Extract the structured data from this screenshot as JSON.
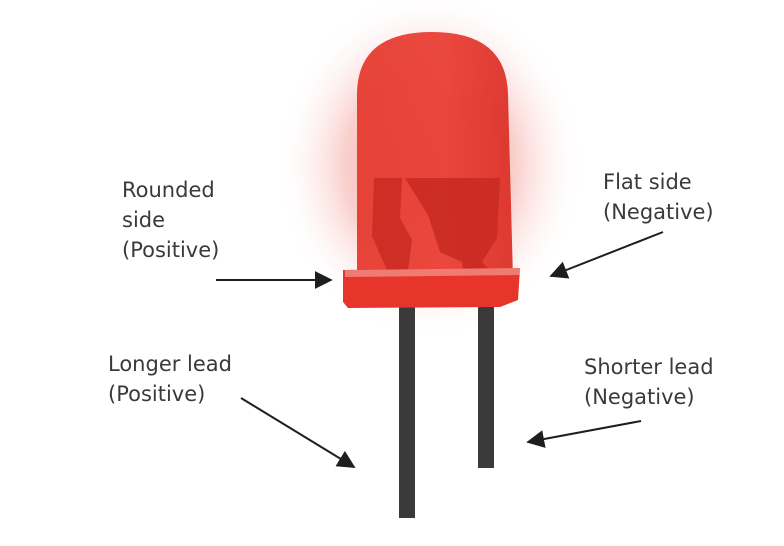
{
  "diagram": {
    "subject": "red LED",
    "colors": {
      "body": "#e8352b",
      "body_dark": "#c92a22",
      "glow": "#f08a84",
      "lead": "#3a3a3a",
      "arrow": "#1e1e1e",
      "text": "#3a3a3a"
    },
    "labels": {
      "rounded_side": [
        "Rounded",
        "side",
        "(Positive)"
      ],
      "flat_side": [
        "Flat side",
        "(Negative)"
      ],
      "longer_lead": [
        "Longer lead",
        "(Positive)"
      ],
      "shorter_lead": [
        "Shorter lead",
        "(Negative)"
      ]
    }
  }
}
